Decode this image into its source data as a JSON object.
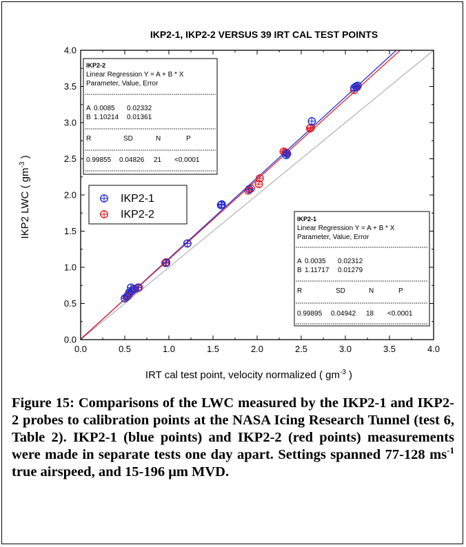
{
  "chart_data": {
    "type": "scatter",
    "title": "IKP2-1, IKP2-2 VERSUS 39 IRT CAL TEST POINTS",
    "xlabel": "IRT cal test point, velocity normalized ( gm",
    "xlabel_sup": "-3",
    "xlabel_tail": " )",
    "ylabel": "IKP2 LWC ( gm",
    "ylabel_sup": "-3",
    "ylabel_tail": " )",
    "xlim": [
      0.0,
      4.0
    ],
    "ylim": [
      0.0,
      4.0
    ],
    "xticks": [
      "0.0",
      "0.5",
      "1.0",
      "1.5",
      "2.0",
      "2.5",
      "3.0",
      "3.5",
      "4.0"
    ],
    "yticks": [
      "0.0",
      "0.5",
      "1.0",
      "1.5",
      "2.0",
      "2.5",
      "3.0",
      "3.5",
      "4.0"
    ],
    "legend_position": "mid-left",
    "series": [
      {
        "name": "IKP2-1",
        "color": "#1f2fd6",
        "points": [
          [
            0.5,
            0.57
          ],
          [
            0.55,
            0.65
          ],
          [
            0.57,
            0.72
          ],
          [
            0.6,
            0.7
          ],
          [
            0.65,
            0.72
          ],
          [
            0.97,
            1.06
          ],
          [
            1.21,
            1.33
          ],
          [
            1.59,
            1.86
          ],
          [
            1.6,
            1.87
          ],
          [
            1.91,
            2.08
          ],
          [
            2.33,
            2.55
          ],
          [
            2.34,
            2.57
          ],
          [
            2.62,
            3.02
          ],
          [
            3.1,
            3.48
          ],
          [
            3.12,
            3.5
          ],
          [
            3.14,
            3.51
          ],
          [
            0.58,
            0.67
          ],
          [
            0.53,
            0.6
          ]
        ],
        "fit": {
          "A": 0.0035,
          "B": 1.11717
        }
      },
      {
        "name": "IKP2-2",
        "color": "#e0202a",
        "points": [
          [
            0.52,
            0.59
          ],
          [
            0.55,
            0.63
          ],
          [
            0.58,
            0.67
          ],
          [
            0.66,
            0.72
          ],
          [
            0.96,
            1.06
          ],
          [
            1.21,
            1.33
          ],
          [
            1.6,
            1.87
          ],
          [
            1.9,
            2.06
          ],
          [
            1.93,
            2.09
          ],
          [
            2.02,
            2.15
          ],
          [
            2.03,
            2.23
          ],
          [
            2.3,
            2.6
          ],
          [
            2.32,
            2.59
          ],
          [
            2.6,
            2.92
          ],
          [
            2.61,
            2.93
          ],
          [
            3.1,
            3.45
          ],
          [
            3.13,
            3.49
          ],
          [
            0.97,
            1.07
          ],
          [
            0.57,
            0.66
          ],
          [
            0.62,
            0.7
          ],
          [
            2.33,
            2.58
          ]
        ],
        "fit": {
          "A": 0.0085,
          "B": 1.10214
        }
      }
    ],
    "reference_line": "1:1",
    "stat_boxes": [
      {
        "title": "IKP2-2",
        "line1": "Linear Regression Y = A + B * X",
        "line2": "Parameter, Value, Error",
        "rowA": [
          "A",
          "0.0085",
          "0.02332"
        ],
        "rowB": [
          "B",
          "1.10214",
          "0.01361"
        ],
        "headers": [
          "R",
          "SD",
          "N",
          "P"
        ],
        "values": [
          "0.99855",
          "0.04826",
          "21",
          "<0.0001"
        ],
        "position": "top-left"
      },
      {
        "title": "IKP2-1",
        "line1": "Linear Regression Y = A + B * X",
        "line2": "Parameter, Value, Error",
        "rowA": [
          "A",
          "0.0035",
          "0.02312"
        ],
        "rowB": [
          "B",
          "1.11717",
          "0.01279"
        ],
        "headers": [
          "R",
          "SD",
          "N",
          "P"
        ],
        "values": [
          "0.99895",
          "0.04942",
          "18",
          "<0.0001"
        ],
        "position": "bottom-right"
      }
    ]
  },
  "caption": {
    "part1": "Figure 15:  Comparisons of the LWC measured by the IKP2-1 and IKP2-2 probes to calibration points at the NASA Icing Research Tunnel (test 6, Table 2).  IKP2-1 (blue points) and IKP2-2 (red points) measurements were made in separate tests one day apart.  Settings spanned 77-128 ms",
    "sup": "-1",
    "part2": " true airspeed, and 15-196 μm MVD."
  }
}
